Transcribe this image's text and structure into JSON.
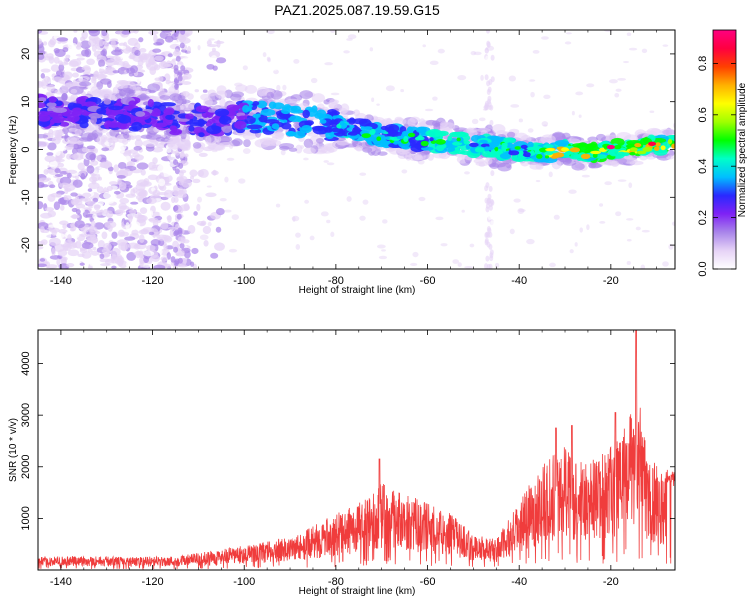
{
  "title": "PAZ1.2025.087.19.59.G15",
  "chart_data": [
    {
      "type": "heatmap",
      "title": "",
      "xlabel": "Height of straight line (km)",
      "ylabel": "Frequency (Hz)",
      "xlim": [
        -145,
        -6
      ],
      "ylim": [
        -25,
        25
      ],
      "x_ticks": [
        "-140",
        "-120",
        "-100",
        "-80",
        "-60",
        "-40",
        "-20"
      ],
      "y_ticks": [
        "-20",
        "-10",
        "0",
        "10",
        "20"
      ],
      "colorbar": {
        "label": "Normalized spectral amplitude",
        "range": [
          0,
          0.93
        ],
        "ticks": [
          "0.0",
          "0.2",
          "0.4",
          "0.6",
          "0.8"
        ],
        "colormap": [
          "#ffffff",
          "#e6d3f6",
          "#a985ea",
          "#7f22f5",
          "#2929ff",
          "#00bfff",
          "#00ffc8",
          "#00ff00",
          "#a0ff00",
          "#ffff00",
          "#ffb000",
          "#ff4000",
          "#ff0040",
          "#ff0080"
        ]
      },
      "ridge": [
        {
          "x": -142,
          "y": 8
        },
        {
          "x": -135,
          "y": 8
        },
        {
          "x": -120,
          "y": 7
        },
        {
          "x": -110,
          "y": 6
        },
        {
          "x": -100,
          "y": 7
        },
        {
          "x": -90,
          "y": 6
        },
        {
          "x": -80,
          "y": 5
        },
        {
          "x": -70,
          "y": 3
        },
        {
          "x": -60,
          "y": 2
        },
        {
          "x": -50,
          "y": 1
        },
        {
          "x": -40,
          "y": 0
        },
        {
          "x": -35,
          "y": -1
        },
        {
          "x": -30,
          "y": 0
        },
        {
          "x": -25,
          "y": -1
        },
        {
          "x": -20,
          "y": 0
        },
        {
          "x": -15,
          "y": 0
        },
        {
          "x": -10,
          "y": 1
        },
        {
          "x": -6,
          "y": 1
        }
      ]
    },
    {
      "type": "line",
      "title": "",
      "xlabel": "Height of straight line (km)",
      "ylabel": "SNR (10 * v/v)",
      "xlim": [
        -145,
        -6
      ],
      "ylim": [
        0,
        4650
      ],
      "x_ticks": [
        "-140",
        "-120",
        "-100",
        "-80",
        "-60",
        "-40",
        "-20"
      ],
      "y_ticks": [
        "1000",
        "2000",
        "3000",
        "4000"
      ],
      "series_color": "#f03c3c",
      "envelope": [
        {
          "x": -145,
          "y": 250
        },
        {
          "x": -135,
          "y": 280
        },
        {
          "x": -125,
          "y": 250
        },
        {
          "x": -115,
          "y": 270
        },
        {
          "x": -105,
          "y": 400
        },
        {
          "x": -95,
          "y": 550
        },
        {
          "x": -88,
          "y": 700
        },
        {
          "x": -82,
          "y": 1000
        },
        {
          "x": -75,
          "y": 1300
        },
        {
          "x": -70,
          "y": 1700
        },
        {
          "x": -65,
          "y": 1500
        },
        {
          "x": -60,
          "y": 1300
        },
        {
          "x": -55,
          "y": 1100
        },
        {
          "x": -50,
          "y": 700
        },
        {
          "x": -45,
          "y": 600
        },
        {
          "x": -40,
          "y": 1300
        },
        {
          "x": -35,
          "y": 2100
        },
        {
          "x": -30,
          "y": 2400
        },
        {
          "x": -25,
          "y": 2100
        },
        {
          "x": -20,
          "y": 2400
        },
        {
          "x": -17,
          "y": 2800
        },
        {
          "x": -14,
          "y": 3400
        },
        {
          "x": -12,
          "y": 2200
        },
        {
          "x": -9,
          "y": 2000
        },
        {
          "x": -6,
          "y": 1900
        }
      ],
      "peaks": [
        {
          "x": -70.5,
          "y": 2150
        },
        {
          "x": -32,
          "y": 2750
        },
        {
          "x": -28.5,
          "y": 2800
        },
        {
          "x": -19,
          "y": 3050
        },
        {
          "x": -14.5,
          "y": 4650
        }
      ]
    }
  ]
}
